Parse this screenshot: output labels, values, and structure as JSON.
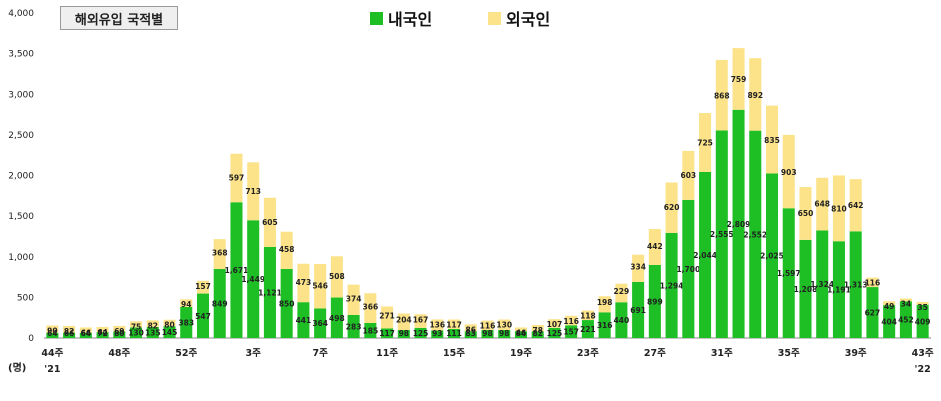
{
  "title": "해외유입 국적별",
  "unit_label": "(명)",
  "chart_data": {
    "type": "bar",
    "stacked": true,
    "title": "해외유입 국적별",
    "ylim": [
      0,
      4000
    ],
    "yticks": [
      "0",
      "500",
      "1,000",
      "1,500",
      "2,000",
      "2,500",
      "3,000",
      "3,500",
      "4,000"
    ],
    "ytick_values": [
      0,
      500,
      1000,
      1500,
      2000,
      2500,
      3000,
      3500,
      4000
    ],
    "legend_position": "top-center",
    "x_tick_labels": [
      {
        "index": 0,
        "label": "44주",
        "sub": "'21"
      },
      {
        "index": 4,
        "label": "48주"
      },
      {
        "index": 8,
        "label": "52주"
      },
      {
        "index": 12,
        "label": "3주"
      },
      {
        "index": 16,
        "label": "7주"
      },
      {
        "index": 20,
        "label": "11주"
      },
      {
        "index": 24,
        "label": "15주"
      },
      {
        "index": 28,
        "label": "19주"
      },
      {
        "index": 32,
        "label": "23주"
      },
      {
        "index": 36,
        "label": "27주"
      },
      {
        "index": 40,
        "label": "31주"
      },
      {
        "index": 44,
        "label": "35주"
      },
      {
        "index": 48,
        "label": "39주"
      },
      {
        "index": 52,
        "label": "43주",
        "sub": "'22"
      }
    ],
    "series": [
      {
        "name": "내국인",
        "color": "#1dbf24",
        "values": [
          64,
          66,
          64,
          72,
          80,
          130,
          135,
          145,
          383,
          547,
          849,
          1671,
          1449,
          1121,
          850,
          441,
          364,
          498,
          283,
          185,
          117,
          98,
          125,
          93,
          111,
          83,
          98,
          98,
          84,
          82,
          125,
          157,
          221,
          316,
          440,
          691,
          899,
          1294,
          1700,
          2044,
          2555,
          2809,
          2552,
          2025,
          1597,
          1208,
          1324,
          1191,
          1313,
          627,
          404,
          452,
          409
        ],
        "labels": [
          "64",
          "66",
          "64",
          "72",
          "80",
          "130",
          "135",
          "145",
          "383",
          "547",
          "849",
          "1,671",
          "1,449",
          "1,121",
          "850",
          "441",
          "364",
          "498",
          "283",
          "185",
          "117",
          "98",
          "125",
          "93",
          "111",
          "83",
          "98",
          "98",
          "84",
          "82",
          "125",
          "157",
          "221",
          "316",
          "440",
          "691",
          "899",
          "1,294",
          "1,700",
          "2,044",
          "2,555",
          "2,809",
          "2,552",
          "2,025",
          "1,597",
          "1,208",
          "1,324",
          "1,191",
          "1,313",
          "627",
          "404",
          "452",
          "409"
        ]
      },
      {
        "name": "외국인",
        "color": "#fce38a",
        "values": [
          90,
          82,
          66,
          64,
          69,
          75,
          82,
          80,
          94,
          157,
          368,
          597,
          713,
          605,
          458,
          473,
          546,
          508,
          374,
          366,
          271,
          204,
          167,
          136,
          117,
          86,
          116,
          130,
          46,
          78,
          107,
          116,
          118,
          198,
          229,
          334,
          442,
          620,
          603,
          725,
          868,
          759,
          892,
          835,
          903,
          650,
          648,
          810,
          642,
          116,
          49,
          34,
          35
        ],
        "labels": [
          "90",
          "82",
          "66",
          "64",
          "69",
          "75",
          "82",
          "80",
          "94",
          "157",
          "368",
          "597",
          "713",
          "605",
          "458",
          "473",
          "546",
          "508",
          "374",
          "366",
          "271",
          "204",
          "167",
          "136",
          "117",
          "86",
          "116",
          "130",
          "46",
          "78",
          "107",
          "116",
          "118",
          "198",
          "229",
          "334",
          "442",
          "620",
          "603",
          "725",
          "868",
          "759",
          "892",
          "835",
          "903",
          "650",
          "648",
          "810",
          "642",
          "116",
          "49",
          "34",
          "35"
        ]
      }
    ]
  }
}
